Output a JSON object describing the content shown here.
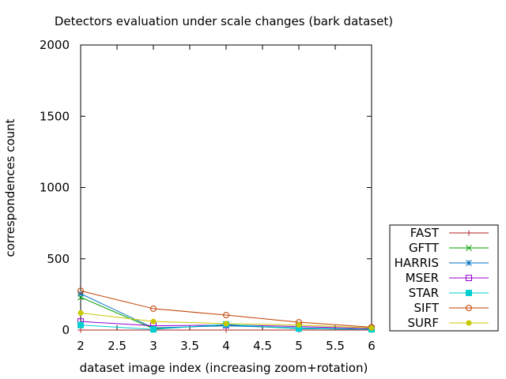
{
  "chart_data": {
    "type": "line",
    "title": "Detectors evaluation under scale changes (bark dataset)",
    "xlabel": "dataset image index (increasing zoom+rotation)",
    "ylabel": "correspondences count",
    "xlim": [
      2,
      6
    ],
    "ylim": [
      0,
      2000
    ],
    "x_ticks": [
      "2",
      "2.5",
      "3",
      "3.5",
      "4",
      "4.5",
      "5",
      "5.5",
      "6"
    ],
    "y_ticks": [
      "0",
      "500",
      "1000",
      "1500",
      "2000"
    ],
    "x": [
      2,
      3,
      4,
      5,
      6
    ],
    "legend_position": "bottom-right, outside plot",
    "series": [
      {
        "name": "FAST",
        "color": "#b22222",
        "marker": "plus",
        "values": [
          0,
          0,
          0,
          0,
          0
        ]
      },
      {
        "name": "GFTT",
        "color": "#00a000",
        "marker": "cross",
        "values": [
          230,
          10,
          35,
          10,
          5
        ]
      },
      {
        "name": "HARRIS",
        "color": "#0070c0",
        "marker": "star",
        "values": [
          255,
          15,
          30,
          15,
          5
        ]
      },
      {
        "name": "MSER",
        "color": "#9400d3",
        "marker": "open-square",
        "values": [
          60,
          30,
          35,
          25,
          10
        ]
      },
      {
        "name": "STAR",
        "color": "#00ced1",
        "marker": "filled-square",
        "values": [
          35,
          5,
          40,
          10,
          5
        ]
      },
      {
        "name": "SIFT",
        "color": "#c04000",
        "marker": "open-circle",
        "values": [
          275,
          150,
          105,
          55,
          20
        ]
      },
      {
        "name": "SURF",
        "color": "#c8c800",
        "marker": "filled-circle",
        "values": [
          120,
          60,
          45,
          35,
          15
        ]
      }
    ]
  }
}
